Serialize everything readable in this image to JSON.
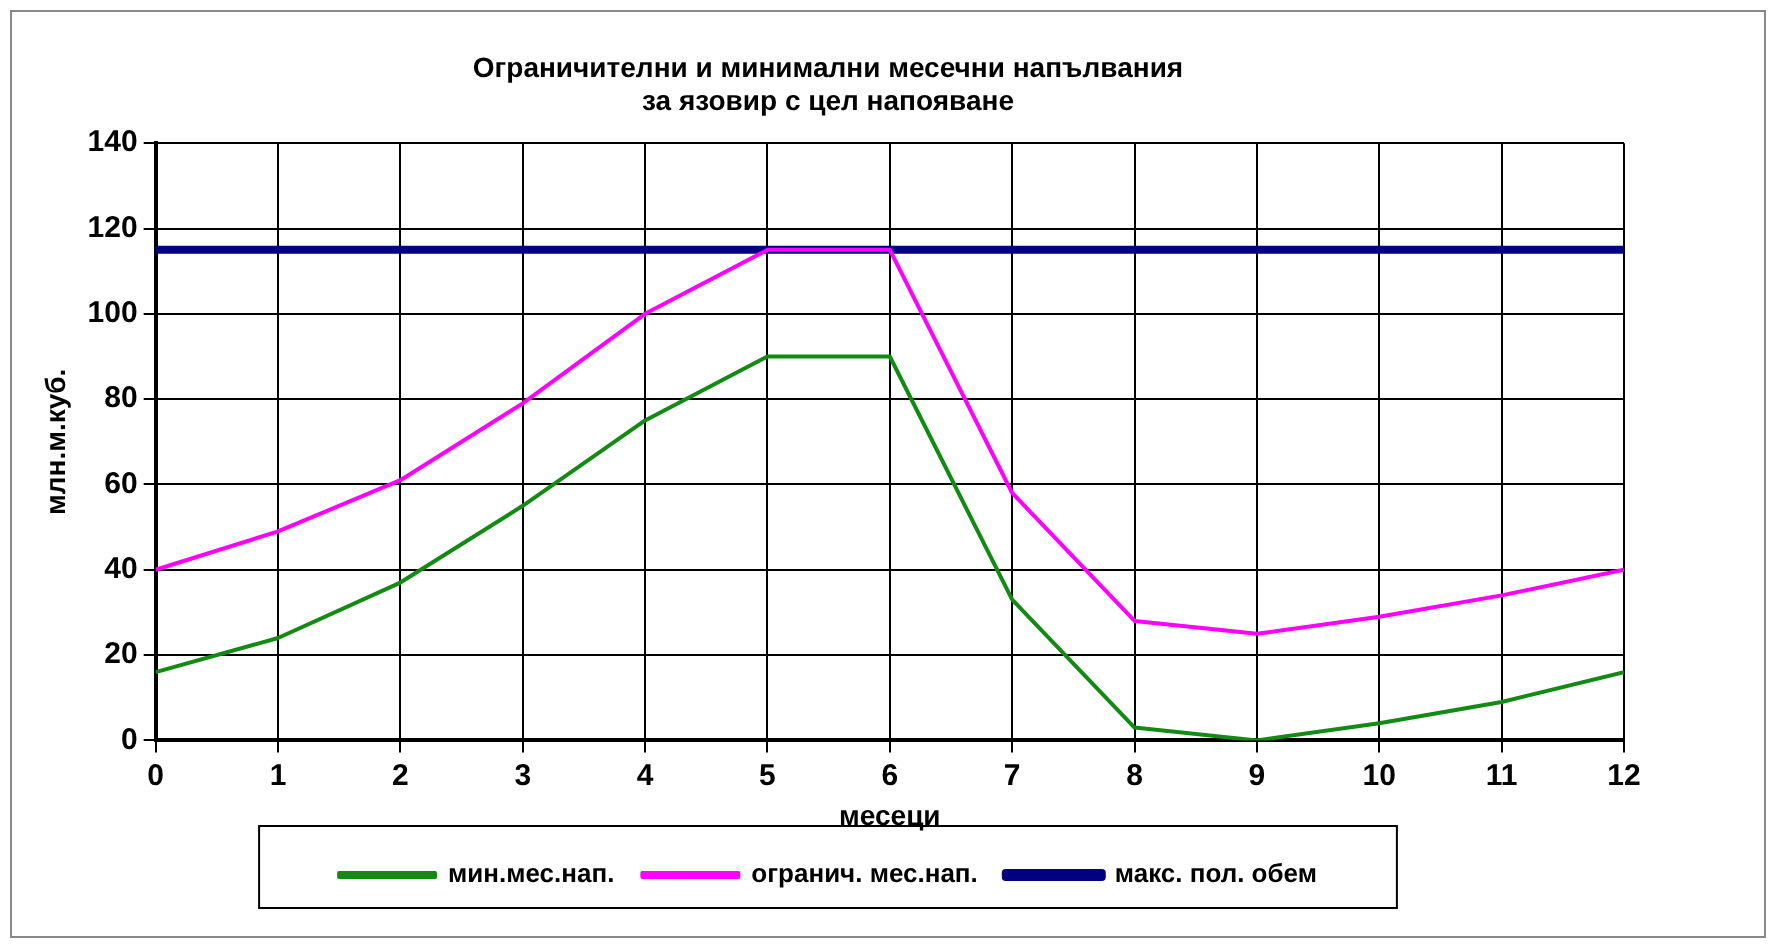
{
  "chart_data": {
    "type": "line",
    "title": [
      "Ограничителни и минимални месечни напълвания",
      "за язовир с цел напояване"
    ],
    "xlabel": "месеци",
    "ylabel": "млн.м.куб.",
    "x": [
      0,
      1,
      2,
      3,
      4,
      5,
      6,
      7,
      8,
      9,
      10,
      11,
      12
    ],
    "xlim": [
      0,
      12
    ],
    "xticks": [
      0,
      1,
      2,
      3,
      4,
      5,
      6,
      7,
      8,
      9,
      10,
      11,
      12
    ],
    "ylim": [
      0,
      140
    ],
    "yticks": [
      0,
      20,
      40,
      60,
      80,
      100,
      120,
      140
    ],
    "series": [
      {
        "name": "мин.мес.нап.",
        "color": "#138a13",
        "values": [
          16,
          24,
          37,
          55,
          75,
          90,
          90,
          33,
          3,
          0,
          4,
          9,
          16
        ]
      },
      {
        "name": "огранич. мес.нап.",
        "color": "#ff00ff",
        "values": [
          40,
          49,
          61,
          79,
          100,
          115,
          115,
          58,
          28,
          25,
          29,
          34,
          40
        ]
      },
      {
        "name": "макс. пол. обем",
        "color": "#000080",
        "values": [
          115,
          115,
          115,
          115,
          115,
          115,
          115,
          115,
          115,
          115,
          115,
          115,
          115
        ]
      }
    ],
    "grid": true,
    "legend": "bottom",
    "marker": "none",
    "line_style": "solid"
  }
}
